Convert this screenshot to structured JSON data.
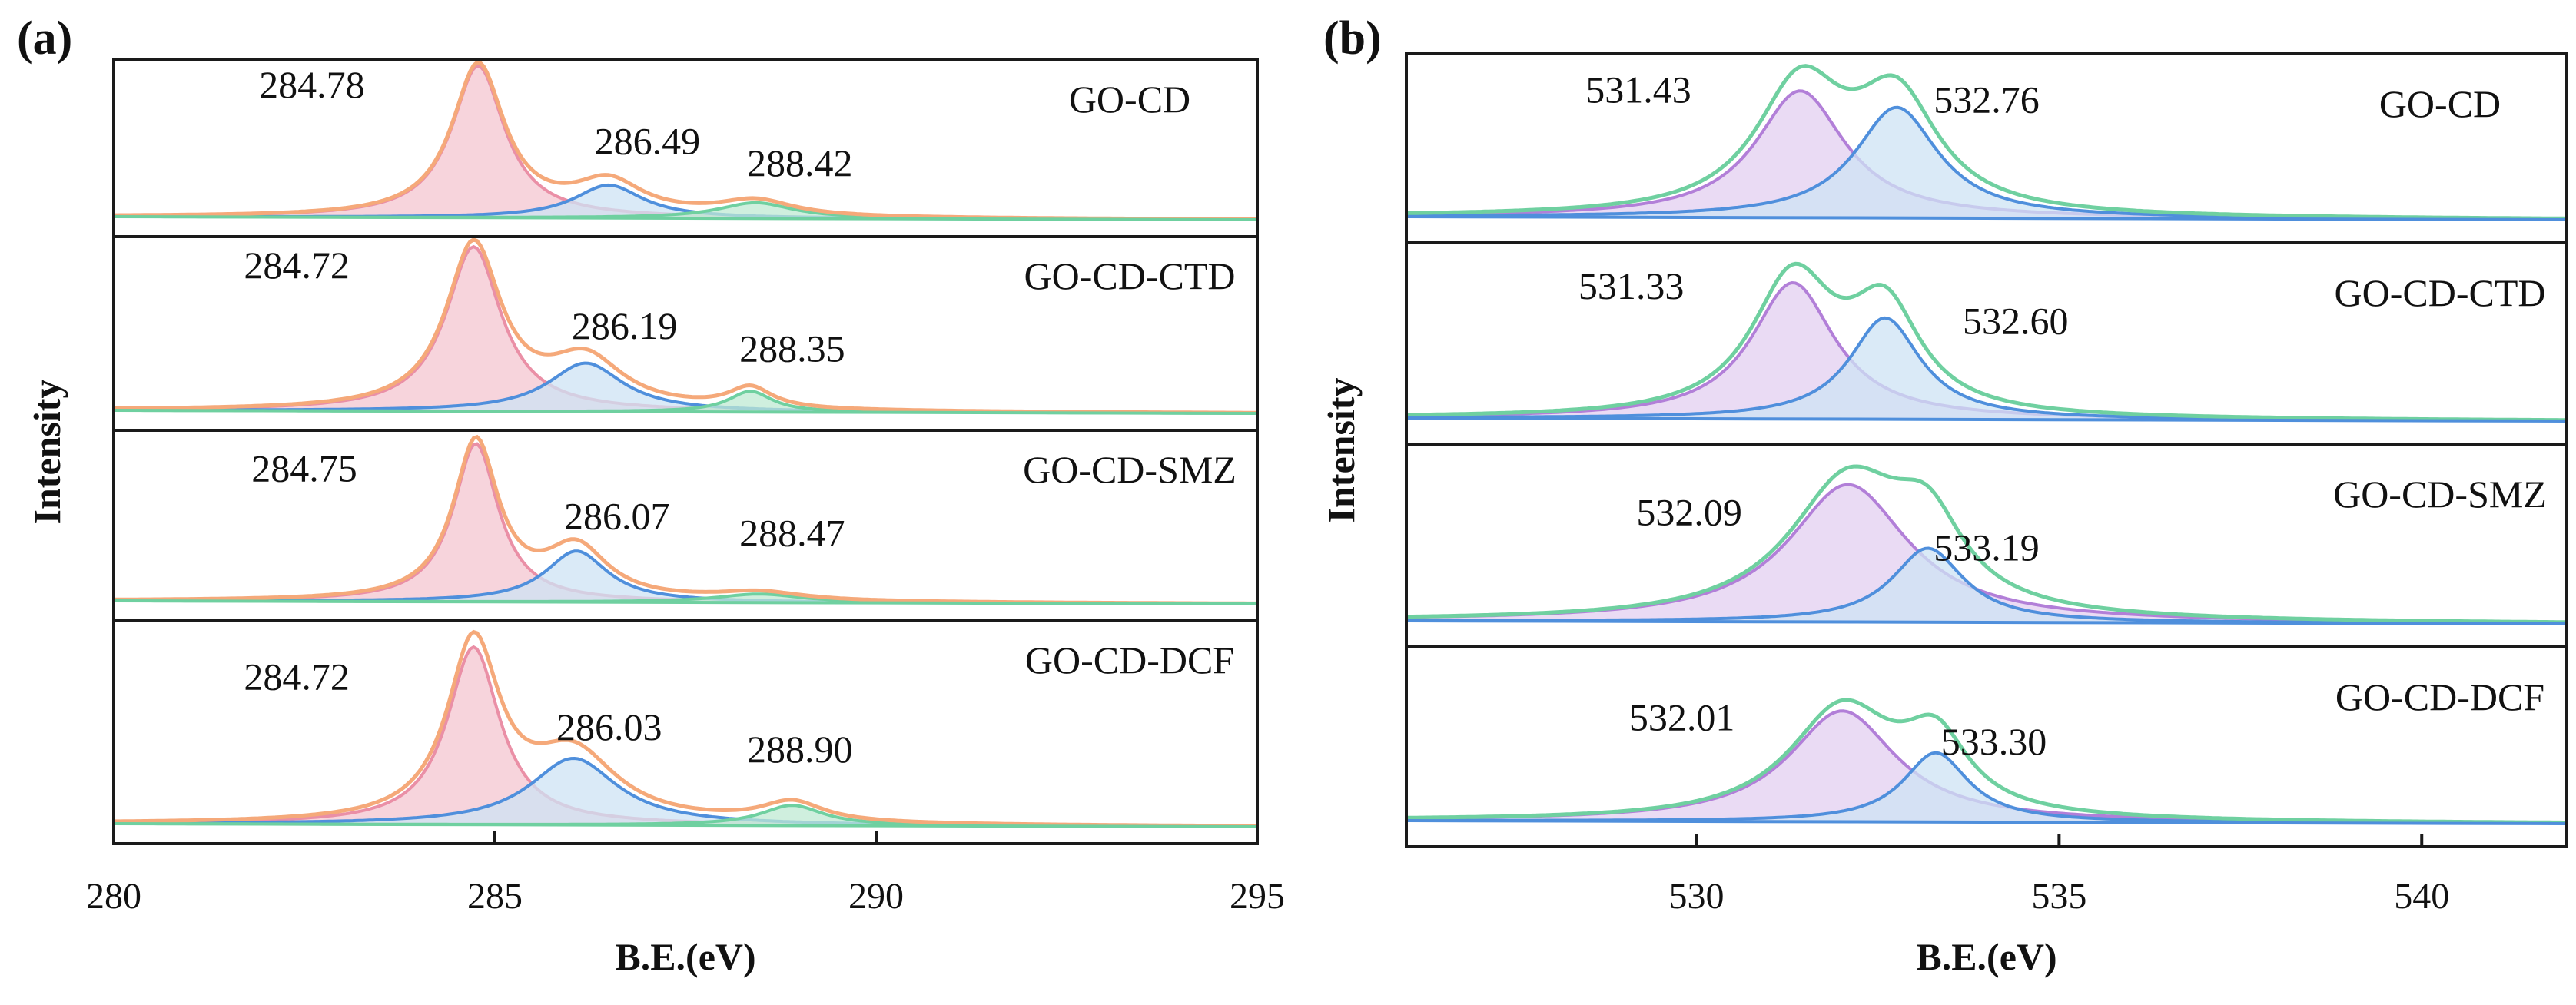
{
  "colors": {
    "pink_fill": "#f4c6d0",
    "pink_line": "#ea8fa6",
    "blue_fill": "#cde3f4",
    "blue_line": "#4f8fdc",
    "purple_fill": "#e3cff0",
    "purple_line": "#b27fd8",
    "orange_env": "#f5a97a",
    "green_line": "#6fd0a0",
    "axis": "#1a1a1a"
  },
  "chart_data": [
    {
      "type": "line",
      "panel_label": "(a)",
      "title": "",
      "xlabel": "B.E.(eV)",
      "ylabel": "Intensity",
      "xlim": [
        280,
        295
      ],
      "xticks": [
        280,
        285,
        290,
        295
      ],
      "envelope_color": "#f5a97a",
      "stack": [
        {
          "name": "GO-CD",
          "peaks": [
            {
              "center": 284.78,
              "height": 0.97,
              "width": 0.42,
              "color": "pink"
            },
            {
              "center": 286.49,
              "height": 0.21,
              "width": 0.55,
              "color": "blue"
            },
            {
              "center": 288.42,
              "height": 0.1,
              "width": 0.6,
              "color": "green"
            }
          ],
          "labels": [
            {
              "text": "284.78",
              "x": 282.6,
              "y": 0.78
            },
            {
              "text": "286.49",
              "x": 287.0,
              "y": 0.42
            },
            {
              "text": "288.42",
              "x": 289.0,
              "y": 0.28
            }
          ]
        },
        {
          "name": "GO-CD-CTD",
          "peaks": [
            {
              "center": 284.72,
              "height": 0.95,
              "width": 0.44,
              "color": "pink"
            },
            {
              "center": 286.19,
              "height": 0.28,
              "width": 0.6,
              "color": "blue"
            },
            {
              "center": 288.35,
              "height": 0.12,
              "width": 0.35,
              "color": "green"
            }
          ],
          "labels": [
            {
              "text": "284.72",
              "x": 282.4,
              "y": 0.78
            },
            {
              "text": "286.19",
              "x": 286.7,
              "y": 0.43
            },
            {
              "text": "288.35",
              "x": 288.9,
              "y": 0.3
            }
          ]
        },
        {
          "name": "GO-CD-SMZ",
          "peaks": [
            {
              "center": 284.75,
              "height": 0.93,
              "width": 0.36,
              "color": "pink"
            },
            {
              "center": 286.07,
              "height": 0.3,
              "width": 0.5,
              "color": "blue"
            },
            {
              "center": 288.47,
              "height": 0.05,
              "width": 0.7,
              "color": "green"
            }
          ],
          "labels": [
            {
              "text": "284.75",
              "x": 282.5,
              "y": 0.72
            },
            {
              "text": "286.07",
              "x": 286.6,
              "y": 0.44
            },
            {
              "text": "288.47",
              "x": 288.9,
              "y": 0.34
            }
          ]
        },
        {
          "name": "GO-CD-DCF",
          "peaks": [
            {
              "center": 284.72,
              "height": 0.88,
              "width": 0.42,
              "color": "pink"
            },
            {
              "center": 286.03,
              "height": 0.33,
              "width": 0.7,
              "color": "blue"
            },
            {
              "center": 288.9,
              "height": 0.1,
              "width": 0.5,
              "color": "green"
            }
          ],
          "labels": [
            {
              "text": "284.72",
              "x": 282.4,
              "y": 0.68
            },
            {
              "text": "286.03",
              "x": 286.5,
              "y": 0.43
            },
            {
              "text": "288.90",
              "x": 289.0,
              "y": 0.32
            }
          ]
        }
      ]
    },
    {
      "type": "line",
      "panel_label": "(b)",
      "title": "",
      "xlabel": "B.E.(eV)",
      "ylabel": "Intensity",
      "xlim": [
        526,
        542
      ],
      "xticks": [
        530,
        535,
        540
      ],
      "envelope_color": "#6fd0a0",
      "stack": [
        {
          "name": "GO-CD",
          "peaks": [
            {
              "center": 531.43,
              "height": 0.78,
              "width": 0.75,
              "color": "purple"
            },
            {
              "center": 532.76,
              "height": 0.68,
              "width": 0.7,
              "color": "blue"
            }
          ],
          "labels": [
            {
              "text": "531.43",
              "x": 529.2,
              "y": 0.72
            },
            {
              "text": "532.76",
              "x": 534.0,
              "y": 0.66
            }
          ]
        },
        {
          "name": "GO-CD-CTD",
          "peaks": [
            {
              "center": 531.33,
              "height": 0.78,
              "width": 0.7,
              "color": "purple"
            },
            {
              "center": 532.6,
              "height": 0.58,
              "width": 0.6,
              "color": "blue"
            }
          ],
          "labels": [
            {
              "text": "531.33",
              "x": 529.1,
              "y": 0.7
            },
            {
              "text": "532.60",
              "x": 534.4,
              "y": 0.5
            }
          ]
        },
        {
          "name": "GO-CD-SMZ",
          "peaks": [
            {
              "center": 532.09,
              "height": 0.78,
              "width": 1.0,
              "color": "purple"
            },
            {
              "center": 533.19,
              "height": 0.42,
              "width": 0.6,
              "color": "blue"
            }
          ],
          "labels": [
            {
              "text": "532.09",
              "x": 529.9,
              "y": 0.56
            },
            {
              "text": "533.19",
              "x": 534.0,
              "y": 0.36
            }
          ]
        },
        {
          "name": "GO-CD-DCF",
          "peaks": [
            {
              "center": 532.01,
              "height": 0.64,
              "width": 0.9,
              "color": "purple"
            },
            {
              "center": 533.3,
              "height": 0.4,
              "width": 0.55,
              "color": "blue"
            }
          ],
          "labels": [
            {
              "text": "532.01",
              "x": 529.8,
              "y": 0.54
            },
            {
              "text": "533.30",
              "x": 534.1,
              "y": 0.4
            }
          ]
        }
      ]
    }
  ]
}
